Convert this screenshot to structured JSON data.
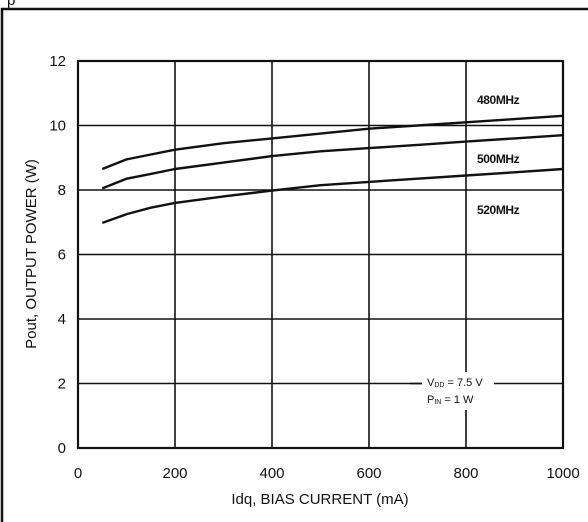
{
  "header_fragment": "p",
  "chart_data": {
    "type": "line",
    "title": "",
    "xlabel": "Idq, BIAS CURRENT  (mA)",
    "ylabel": "Pout, OUTPUT POWER  (W)",
    "xlim": [
      0,
      1000
    ],
    "ylim": [
      0,
      12
    ],
    "x_ticks": [
      "0",
      "200",
      "400",
      "600",
      "800",
      "1000"
    ],
    "y_ticks": [
      "0",
      "2",
      "4",
      "6",
      "8",
      "10",
      "12"
    ],
    "grid": true,
    "series": [
      {
        "name": "480MHz",
        "points": [
          [
            50,
            8.65
          ],
          [
            100,
            8.95
          ],
          [
            150,
            9.1
          ],
          [
            200,
            9.25
          ],
          [
            300,
            9.45
          ],
          [
            400,
            9.6
          ],
          [
            500,
            9.75
          ],
          [
            600,
            9.9
          ],
          [
            700,
            10.0
          ],
          [
            800,
            10.1
          ],
          [
            900,
            10.2
          ],
          [
            1000,
            10.3
          ]
        ]
      },
      {
        "name": "500MHz",
        "points": [
          [
            50,
            8.05
          ],
          [
            100,
            8.35
          ],
          [
            150,
            8.5
          ],
          [
            200,
            8.65
          ],
          [
            300,
            8.85
          ],
          [
            400,
            9.05
          ],
          [
            500,
            9.2
          ],
          [
            600,
            9.3
          ],
          [
            700,
            9.4
          ],
          [
            800,
            9.5
          ],
          [
            900,
            9.6
          ],
          [
            1000,
            9.7
          ]
        ]
      },
      {
        "name": "520MHz",
        "points": [
          [
            50,
            6.98
          ],
          [
            100,
            7.25
          ],
          [
            150,
            7.45
          ],
          [
            200,
            7.6
          ],
          [
            300,
            7.8
          ],
          [
            400,
            7.98
          ],
          [
            500,
            8.15
          ],
          [
            600,
            8.25
          ],
          [
            700,
            8.35
          ],
          [
            800,
            8.45
          ],
          [
            900,
            8.55
          ],
          [
            1000,
            8.65
          ]
        ]
      }
    ],
    "conditions": {
      "vdd_main": "V",
      "vdd_sub": "DD",
      "vdd_value": " = 7.5 V",
      "pin_main": "P",
      "pin_sub": "IN",
      "pin_value": " = 1 W"
    }
  }
}
